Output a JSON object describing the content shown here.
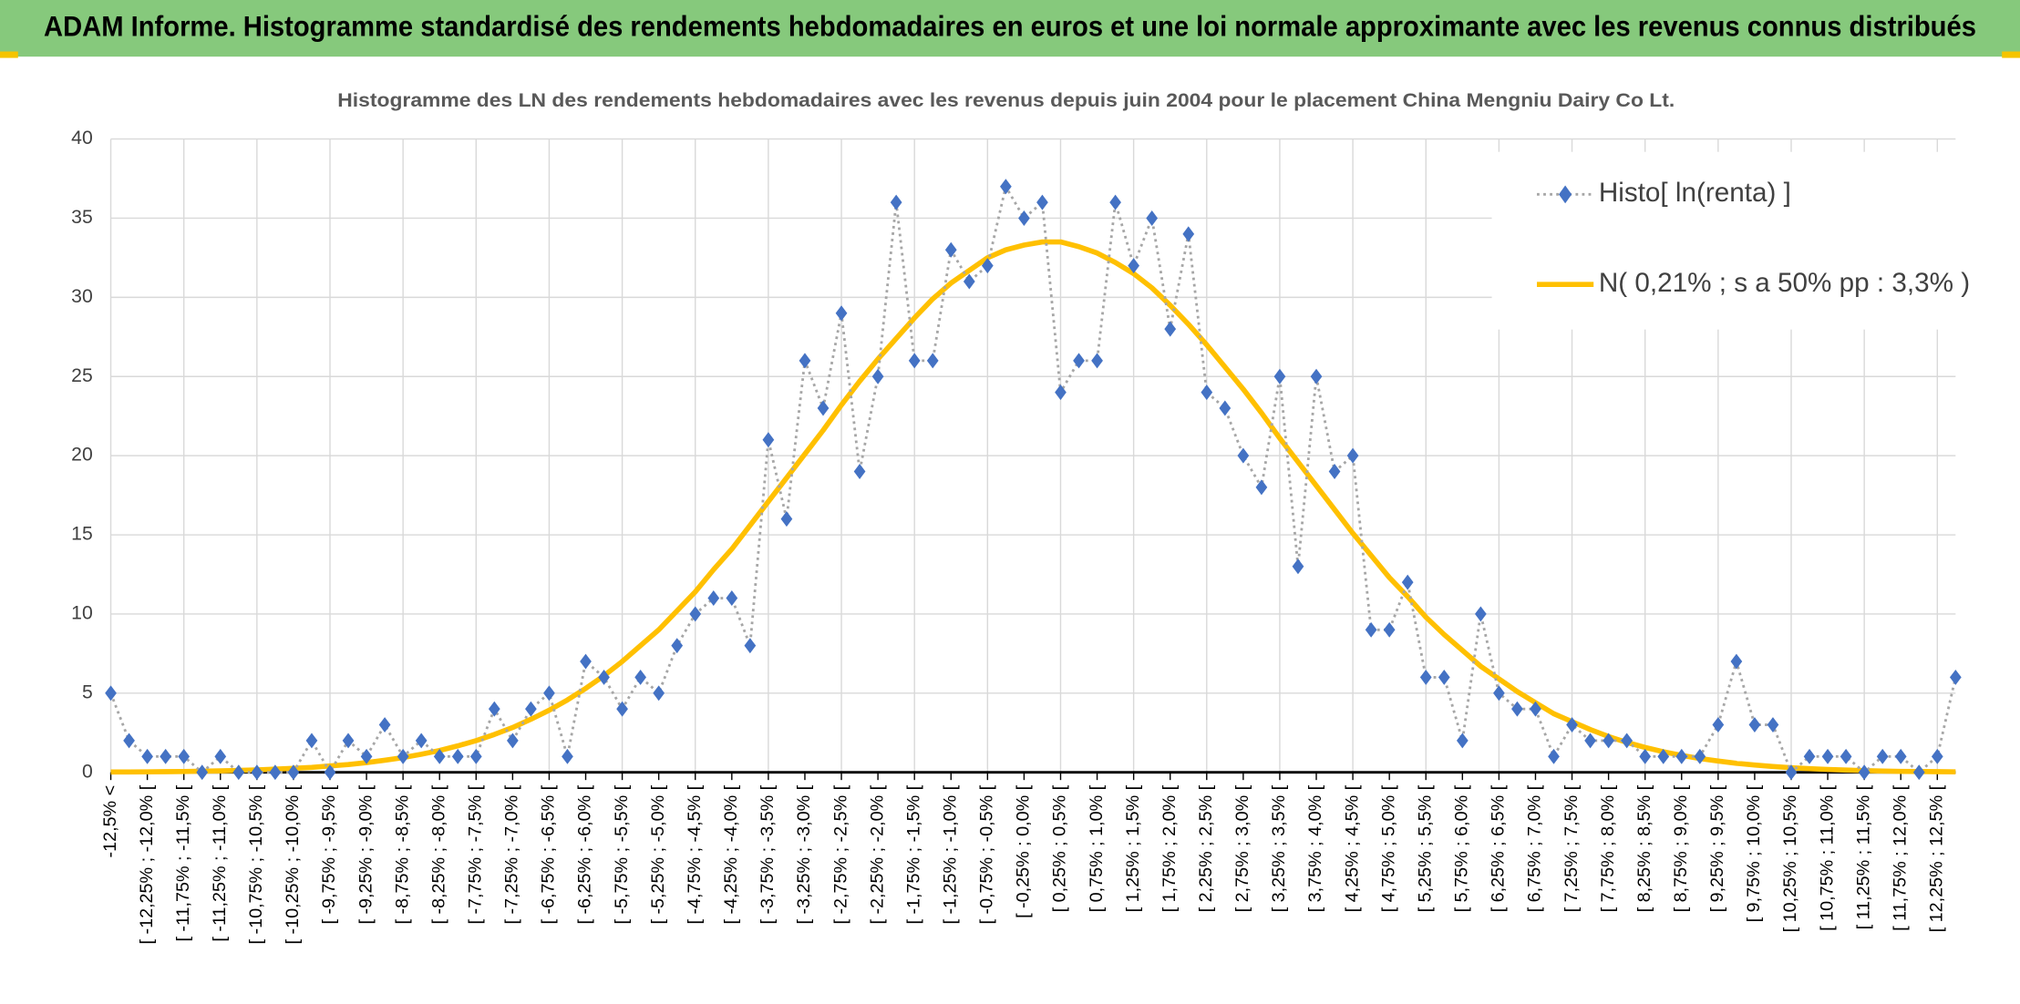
{
  "header": {
    "title": "ADAM Informe. Histogramme standardisé des rendements hebdomadaires en euros et une loi normale approximante avec les revenus connus distribués"
  },
  "chart_data": {
    "type": "line",
    "title": "Histogramme des LN des rendements hebdomadaires avec les revenus depuis juin 2004 pour le placement China Mengniu Dairy Co Lt.",
    "categories": [
      "-12,5% <",
      null,
      "[ -12,25% ; -12,0% [",
      null,
      "[ -11,75% ; -11,5% [",
      null,
      "[ -11,25% ; -11,0% [",
      null,
      "[ -10,75% ; -10,5% [",
      null,
      "[ -10,25% ; -10,0% [",
      null,
      "[ -9,75% ; -9,5% [",
      null,
      "[ -9,25% ; -9,0% [",
      null,
      "[ -8,75% ; -8,5% [",
      null,
      "[ -8,25% ; -8,0% [",
      null,
      "[ -7,75% ; -7,5% [",
      null,
      "[ -7,25% ; -7,0% [",
      null,
      "[ -6,75% ; -6,5% [",
      null,
      "[ -6,25% ; -6,0% [",
      null,
      "[ -5,75% ; -5,5% [",
      null,
      "[ -5,25% ; -5,0% [",
      null,
      "[ -4,75% ; -4,5% [",
      null,
      "[ -4,25% ; -4,0% [",
      null,
      "[ -3,75% ; -3,5% [",
      null,
      "[ -3,25% ; -3,0% [",
      null,
      "[ -2,75% ; -2,5% [",
      null,
      "[ -2,25% ; -2,0% [",
      null,
      "[ -1,75% ; -1,5% [",
      null,
      "[ -1,25% ; -1,0% [",
      null,
      "[ -0,75% ; -0,5% [",
      null,
      "[ -0,25% ; 0,0% [",
      null,
      "[ 0,25% ; 0,5% [",
      null,
      "[ 0,75% ; 1,0% [",
      null,
      "[ 1,25% ; 1,5% [",
      null,
      "[ 1,75% ; 2,0% [",
      null,
      "[ 2,25% ; 2,5% [",
      null,
      "[ 2,75% ; 3,0% [",
      null,
      "[ 3,25% ; 3,5% [",
      null,
      "[ 3,75% ; 4,0% [",
      null,
      "[ 4,25% ; 4,5% [",
      null,
      "[ 4,75% ; 5,0% [",
      null,
      "[ 5,25% ; 5,5% [",
      null,
      "[ 5,75% ; 6,0% [",
      null,
      "[ 6,25% ; 6,5% [",
      null,
      "[ 6,75% ; 7,0% [",
      null,
      "[ 7,25% ; 7,5% [",
      null,
      "[ 7,75% ; 8,0% [",
      null,
      "[ 8,25% ; 8,5% [",
      null,
      "[ 8,75% ; 9,0% [",
      null,
      "[ 9,25% ; 9,5% [",
      null,
      "[ 9,75% ; 10,0% [",
      null,
      "[ 10,25% ; 10,5% [",
      null,
      "[ 10,75% ; 11,0% [",
      null,
      "[ 11,25% ; 11,5% [",
      null,
      "[ 11,75% ; 12,0% [",
      null,
      "[ 12,25% ; 12,5% [",
      null
    ],
    "series": [
      {
        "name": "Histo[ ln(renta) ]",
        "color": "#4472c4",
        "line_color": "#a6a6a6",
        "values": [
          5,
          2,
          1,
          1,
          1,
          0,
          1,
          0,
          0,
          0,
          0,
          2,
          0,
          2,
          1,
          3,
          1,
          2,
          1,
          1,
          1,
          4,
          2,
          4,
          5,
          1,
          7,
          6,
          4,
          6,
          5,
          8,
          10,
          11,
          11,
          8,
          21,
          16,
          26,
          23,
          29,
          19,
          25,
          36,
          26,
          26,
          33,
          31,
          32,
          37,
          35,
          36,
          24,
          26,
          26,
          36,
          32,
          35,
          28,
          34,
          24,
          23,
          20,
          18,
          25,
          13,
          25,
          19,
          20,
          9,
          9,
          12,
          6,
          6,
          2,
          10,
          5,
          4,
          4,
          1,
          3,
          2,
          2,
          2,
          1,
          1,
          1,
          1,
          3,
          7,
          3,
          3,
          0,
          1,
          1,
          1,
          0,
          1,
          1,
          0,
          1,
          6
        ]
      },
      {
        "name": "N( 0,21% ; s a 50% pp : 3,3% )",
        "color": "#ffc000",
        "values": [
          0.02,
          0.02,
          0.03,
          0.04,
          0.05,
          0.07,
          0.09,
          0.12,
          0.15,
          0.2,
          0.25,
          0.31,
          0.4,
          0.49,
          0.61,
          0.76,
          0.93,
          1.14,
          1.38,
          1.67,
          2.0,
          2.39,
          2.83,
          3.35,
          3.92,
          4.57,
          5.3,
          6.1,
          7.0,
          8.0,
          9.0,
          10.2,
          11.4,
          12.8,
          14.1,
          15.6,
          17.1,
          18.6,
          20.1,
          21.6,
          23.2,
          24.7,
          26.1,
          27.4,
          28.7,
          29.9,
          30.9,
          31.7,
          32.5,
          33.0,
          33.3,
          33.5,
          33.5,
          33.2,
          32.8,
          32.2,
          31.5,
          30.6,
          29.5,
          28.3,
          27.0,
          25.6,
          24.2,
          22.7,
          21.1,
          19.6,
          18.1,
          16.6,
          15.1,
          13.7,
          12.3,
          11.1,
          9.8,
          8.7,
          7.7,
          6.7,
          5.9,
          5.1,
          4.4,
          3.7,
          3.2,
          2.7,
          2.26,
          1.89,
          1.57,
          1.3,
          1.07,
          0.87,
          0.71,
          0.57,
          0.46,
          0.37,
          0.29,
          0.23,
          0.18,
          0.14,
          0.11,
          0.08,
          0.06,
          0.05,
          0.04,
          0.03
        ]
      }
    ],
    "ylim": [
      0,
      40
    ],
    "yticks": [
      0,
      5,
      10,
      15,
      20,
      25,
      30,
      35,
      40
    ],
    "grid": true,
    "legend": "top-right"
  }
}
